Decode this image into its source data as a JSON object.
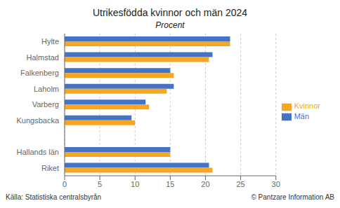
{
  "chart_data": {
    "type": "bar",
    "orientation": "horizontal",
    "title": "Utrikesfödda kvinnor och män 2024",
    "subtitle": "Procent",
    "categories": [
      "Riket",
      "Hallands län",
      null,
      "Kungsbacka",
      "Varberg",
      "Laholm",
      "Falkenberg",
      "Halmstad",
      "Hylte"
    ],
    "series": [
      {
        "name": "Män",
        "color": "#4472c4",
        "values": [
          20.5,
          15.0,
          null,
          9.5,
          11.5,
          15.5,
          15.0,
          21.0,
          23.5
        ]
      },
      {
        "name": "Kvinnor",
        "color": "#f5a623",
        "values": [
          21.0,
          15.0,
          null,
          10.0,
          12.0,
          14.5,
          15.5,
          20.5,
          23.5
        ]
      }
    ],
    "xlim": [
      0,
      30
    ],
    "xticks": [
      0,
      5,
      10,
      15,
      20,
      25,
      30
    ],
    "grid": true,
    "legend": "right",
    "annotations": [
      "Källa: Statistiska centralsbyrån",
      "© Pantzare Information AB"
    ]
  }
}
